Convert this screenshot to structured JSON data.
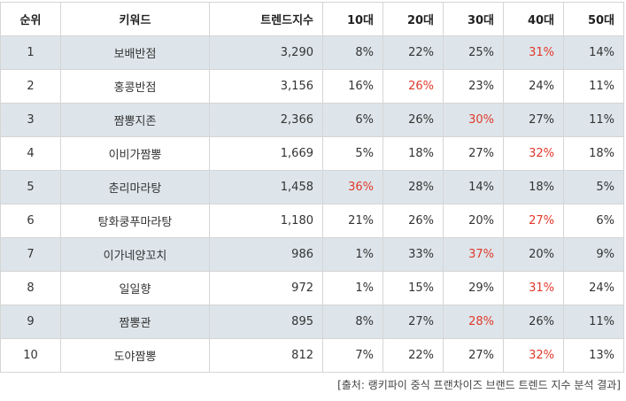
{
  "table": {
    "headers": [
      "순위",
      "키워드",
      "트렌드지수",
      "10대",
      "20대",
      "30대",
      "40대",
      "50대"
    ],
    "highlight_color": "#e0392b",
    "alt_row_color": "#dde5ea",
    "rows": [
      {
        "rank": "1",
        "keyword": "보배반점",
        "trend": "3,290",
        "pct": [
          "8%",
          "22%",
          "25%",
          "31%",
          "14%"
        ],
        "hi": 3
      },
      {
        "rank": "2",
        "keyword": "홍콩반점",
        "trend": "3,156",
        "pct": [
          "16%",
          "26%",
          "23%",
          "24%",
          "11%"
        ],
        "hi": 1
      },
      {
        "rank": "3",
        "keyword": "짬뽕지존",
        "trend": "2,366",
        "pct": [
          "6%",
          "26%",
          "30%",
          "27%",
          "11%"
        ],
        "hi": 2
      },
      {
        "rank": "4",
        "keyword": "이비가짬뽕",
        "trend": "1,669",
        "pct": [
          "5%",
          "18%",
          "27%",
          "32%",
          "18%"
        ],
        "hi": 3
      },
      {
        "rank": "5",
        "keyword": "춘리마라탕",
        "trend": "1,458",
        "pct": [
          "36%",
          "28%",
          "14%",
          "18%",
          "5%"
        ],
        "hi": 0
      },
      {
        "rank": "6",
        "keyword": "탕화쿵푸마라탕",
        "trend": "1,180",
        "pct": [
          "21%",
          "26%",
          "20%",
          "27%",
          "6%"
        ],
        "hi": 3
      },
      {
        "rank": "7",
        "keyword": "이가네양꼬치",
        "trend": "986",
        "pct": [
          "1%",
          "33%",
          "37%",
          "20%",
          "9%"
        ],
        "hi": 2
      },
      {
        "rank": "8",
        "keyword": "일일향",
        "trend": "972",
        "pct": [
          "1%",
          "15%",
          "29%",
          "31%",
          "24%"
        ],
        "hi": 3
      },
      {
        "rank": "9",
        "keyword": "짬뽕관",
        "trend": "895",
        "pct": [
          "8%",
          "27%",
          "28%",
          "26%",
          "11%"
        ],
        "hi": 2
      },
      {
        "rank": "10",
        "keyword": "도야짬뽕",
        "trend": "812",
        "pct": [
          "7%",
          "22%",
          "27%",
          "32%",
          "13%"
        ],
        "hi": 3
      }
    ]
  },
  "source": "[출처: 랭키파이 중식 프랜차이즈 브랜드 트렌드 지수 분석 결과]"
}
